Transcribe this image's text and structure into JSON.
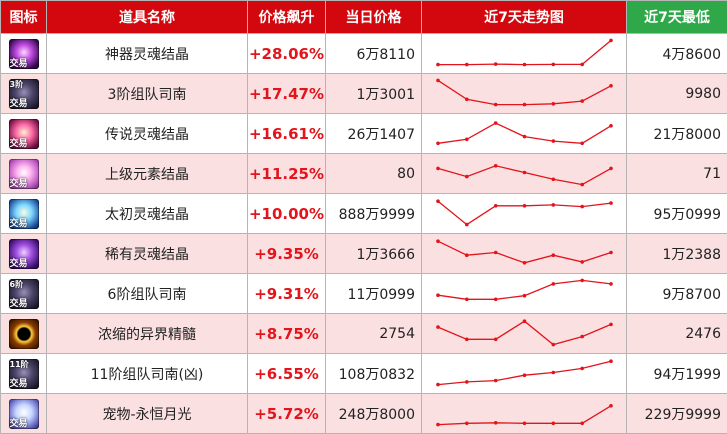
{
  "headers": {
    "icon": "图标",
    "name": "道具名称",
    "rise": "价格飙升",
    "today": "当日价格",
    "trend": "近7天走势图",
    "low": "近7天最低"
  },
  "colors": {
    "header_red": "#d2080e",
    "header_green": "#2fa84a",
    "row_pink": "#fbe0e2",
    "rise_red": "#e3141b",
    "trend_line": "#e3141b"
  },
  "chart_data": {
    "type": "table",
    "rows": [
      {
        "icon": "purple-crystal-icon",
        "badge": "交易",
        "tier": "",
        "name": "神器灵魂结晶",
        "rise": "+28.06%",
        "today": "6万8110",
        "low": "4万8600",
        "trend": [
          0.05,
          0.05,
          0.07,
          0.05,
          0.06,
          0.06,
          0.95
        ]
      },
      {
        "icon": "dark-ring-icon",
        "badge": "交易",
        "tier": "3阶",
        "name": "3阶组队司南",
        "rise": "+17.47%",
        "today": "1万3001",
        "low": "9980",
        "trend": [
          0.95,
          0.25,
          0.05,
          0.05,
          0.08,
          0.18,
          0.75
        ]
      },
      {
        "icon": "pink-crystal-icon",
        "badge": "交易",
        "tier": "",
        "name": "传说灵魂结晶",
        "rise": "+16.61%",
        "today": "26万1407",
        "low": "21万8000",
        "trend": [
          0.1,
          0.25,
          0.85,
          0.35,
          0.18,
          0.1,
          0.75
        ]
      },
      {
        "icon": "pink-orb-icon",
        "badge": "交易",
        "tier": "",
        "name": "上级元素结晶",
        "rise": "+11.25%",
        "today": "80",
        "low": "71",
        "trend": [
          0.65,
          0.35,
          0.75,
          0.5,
          0.25,
          0.05,
          0.65
        ]
      },
      {
        "icon": "blue-crystal-icon",
        "badge": "交易",
        "tier": "",
        "name": "太初灵魂结晶",
        "rise": "+10.00%",
        "today": "888万9999",
        "low": "95万0999",
        "trend": [
          0.92,
          0.05,
          0.75,
          0.75,
          0.78,
          0.72,
          0.85
        ]
      },
      {
        "icon": "violet-crystal-icon",
        "badge": "交易",
        "tier": "",
        "name": "稀有灵魂结晶",
        "rise": "+9.35%",
        "today": "1万3666",
        "low": "1万2388",
        "trend": [
          0.92,
          0.4,
          0.5,
          0.12,
          0.4,
          0.15,
          0.5
        ]
      },
      {
        "icon": "dark-ring-icon",
        "badge": "交易",
        "tier": "6阶",
        "name": "6阶组队司南",
        "rise": "+9.31%",
        "today": "11万0999",
        "low": "9万8700",
        "trend": [
          0.4,
          0.25,
          0.25,
          0.38,
          0.82,
          0.95,
          0.82
        ]
      },
      {
        "icon": "black-hole-icon",
        "badge": "",
        "tier": "",
        "name": "浓缩的异界精髓",
        "rise": "+8.75%",
        "today": "2754",
        "low": "2476",
        "trend": [
          0.7,
          0.25,
          0.25,
          0.92,
          0.05,
          0.35,
          0.8
        ]
      },
      {
        "icon": "dark-ring-icon",
        "badge": "交易",
        "tier": "11阶",
        "name": "11阶组队司南(凶)",
        "rise": "+6.55%",
        "today": "108万0832",
        "low": "94万1999",
        "trend": [
          0.05,
          0.15,
          0.2,
          0.4,
          0.5,
          0.65,
          0.92
        ]
      },
      {
        "icon": "moon-pet-icon",
        "badge": "交易",
        "tier": "",
        "name": "宠物-永恒月光",
        "rise": "+5.72%",
        "today": "248万8000",
        "low": "229万9999",
        "trend": [
          0.05,
          0.1,
          0.12,
          0.1,
          0.1,
          0.1,
          0.75
        ]
      }
    ]
  }
}
